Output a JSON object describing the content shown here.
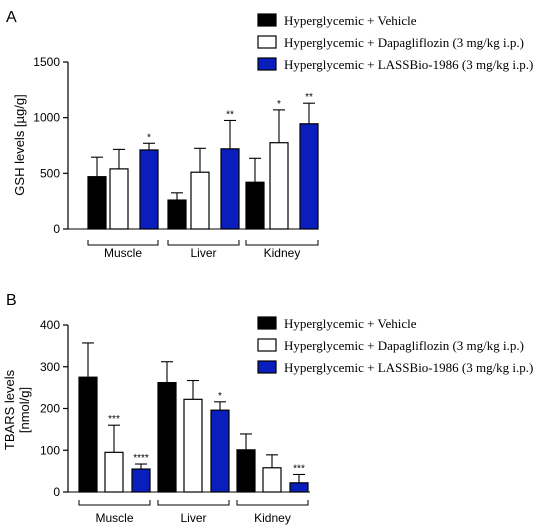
{
  "chart_data": [
    {
      "type": "bar",
      "panel_label": "A",
      "categories": [
        "Muscle",
        "Liver",
        "Kidney"
      ],
      "ylabel": "GSH levels [µg/g]",
      "ylim": [
        0,
        1500
      ],
      "yticks": [
        "0",
        "500",
        "1000",
        "1500"
      ],
      "legend_position": "top-right",
      "series": [
        {
          "name": "Hyperglycemic + Vehicle",
          "fill": "#000000",
          "values": [
            470,
            260,
            420
          ],
          "errors": [
            175,
            65,
            215
          ],
          "sig": [
            "",
            "",
            ""
          ]
        },
        {
          "name": "Hyperglycemic + Dapagliflozin (3 mg/kg i.p.)",
          "fill": "#ffffff",
          "values": [
            540,
            510,
            775
          ],
          "errors": [
            175,
            215,
            295
          ],
          "sig": [
            "",
            "",
            "*"
          ]
        },
        {
          "name": "Hyperglycemic + LASSBio-1986 (3 mg/kg i.p.)",
          "fill": "#0a1ebe",
          "values": [
            710,
            720,
            945
          ],
          "errors": [
            60,
            255,
            185
          ],
          "sig": [
            "*",
            "**",
            "**"
          ]
        }
      ]
    },
    {
      "type": "bar",
      "panel_label": "B",
      "categories": [
        "Muscle",
        "Liver",
        "Kidney"
      ],
      "ylabel": "TBARS levels [nmol/g]",
      "ylim": [
        0,
        400
      ],
      "yticks": [
        "0",
        "100",
        "200",
        "300",
        "400"
      ],
      "legend_position": "top-right",
      "series": [
        {
          "name": "Hyperglycemic + Vehicle",
          "fill": "#000000",
          "values": [
            275,
            262,
            101
          ],
          "errors": [
            82,
            50,
            38
          ],
          "sig": [
            "",
            "",
            ""
          ]
        },
        {
          "name": "Hyperglycemic + Dapagliflozin (3 mg/kg i.p.)",
          "fill": "#ffffff",
          "values": [
            95,
            222,
            58
          ],
          "errors": [
            65,
            45,
            31
          ],
          "sig": [
            "***",
            "",
            ""
          ]
        },
        {
          "name": "Hyperglycemic + LASSBio-1986 (3 mg/kg i.p.)",
          "fill": "#0a1ebe",
          "values": [
            55,
            196,
            22
          ],
          "errors": [
            12,
            20,
            20
          ],
          "sig": [
            "****",
            "*",
            "***"
          ]
        }
      ]
    }
  ]
}
